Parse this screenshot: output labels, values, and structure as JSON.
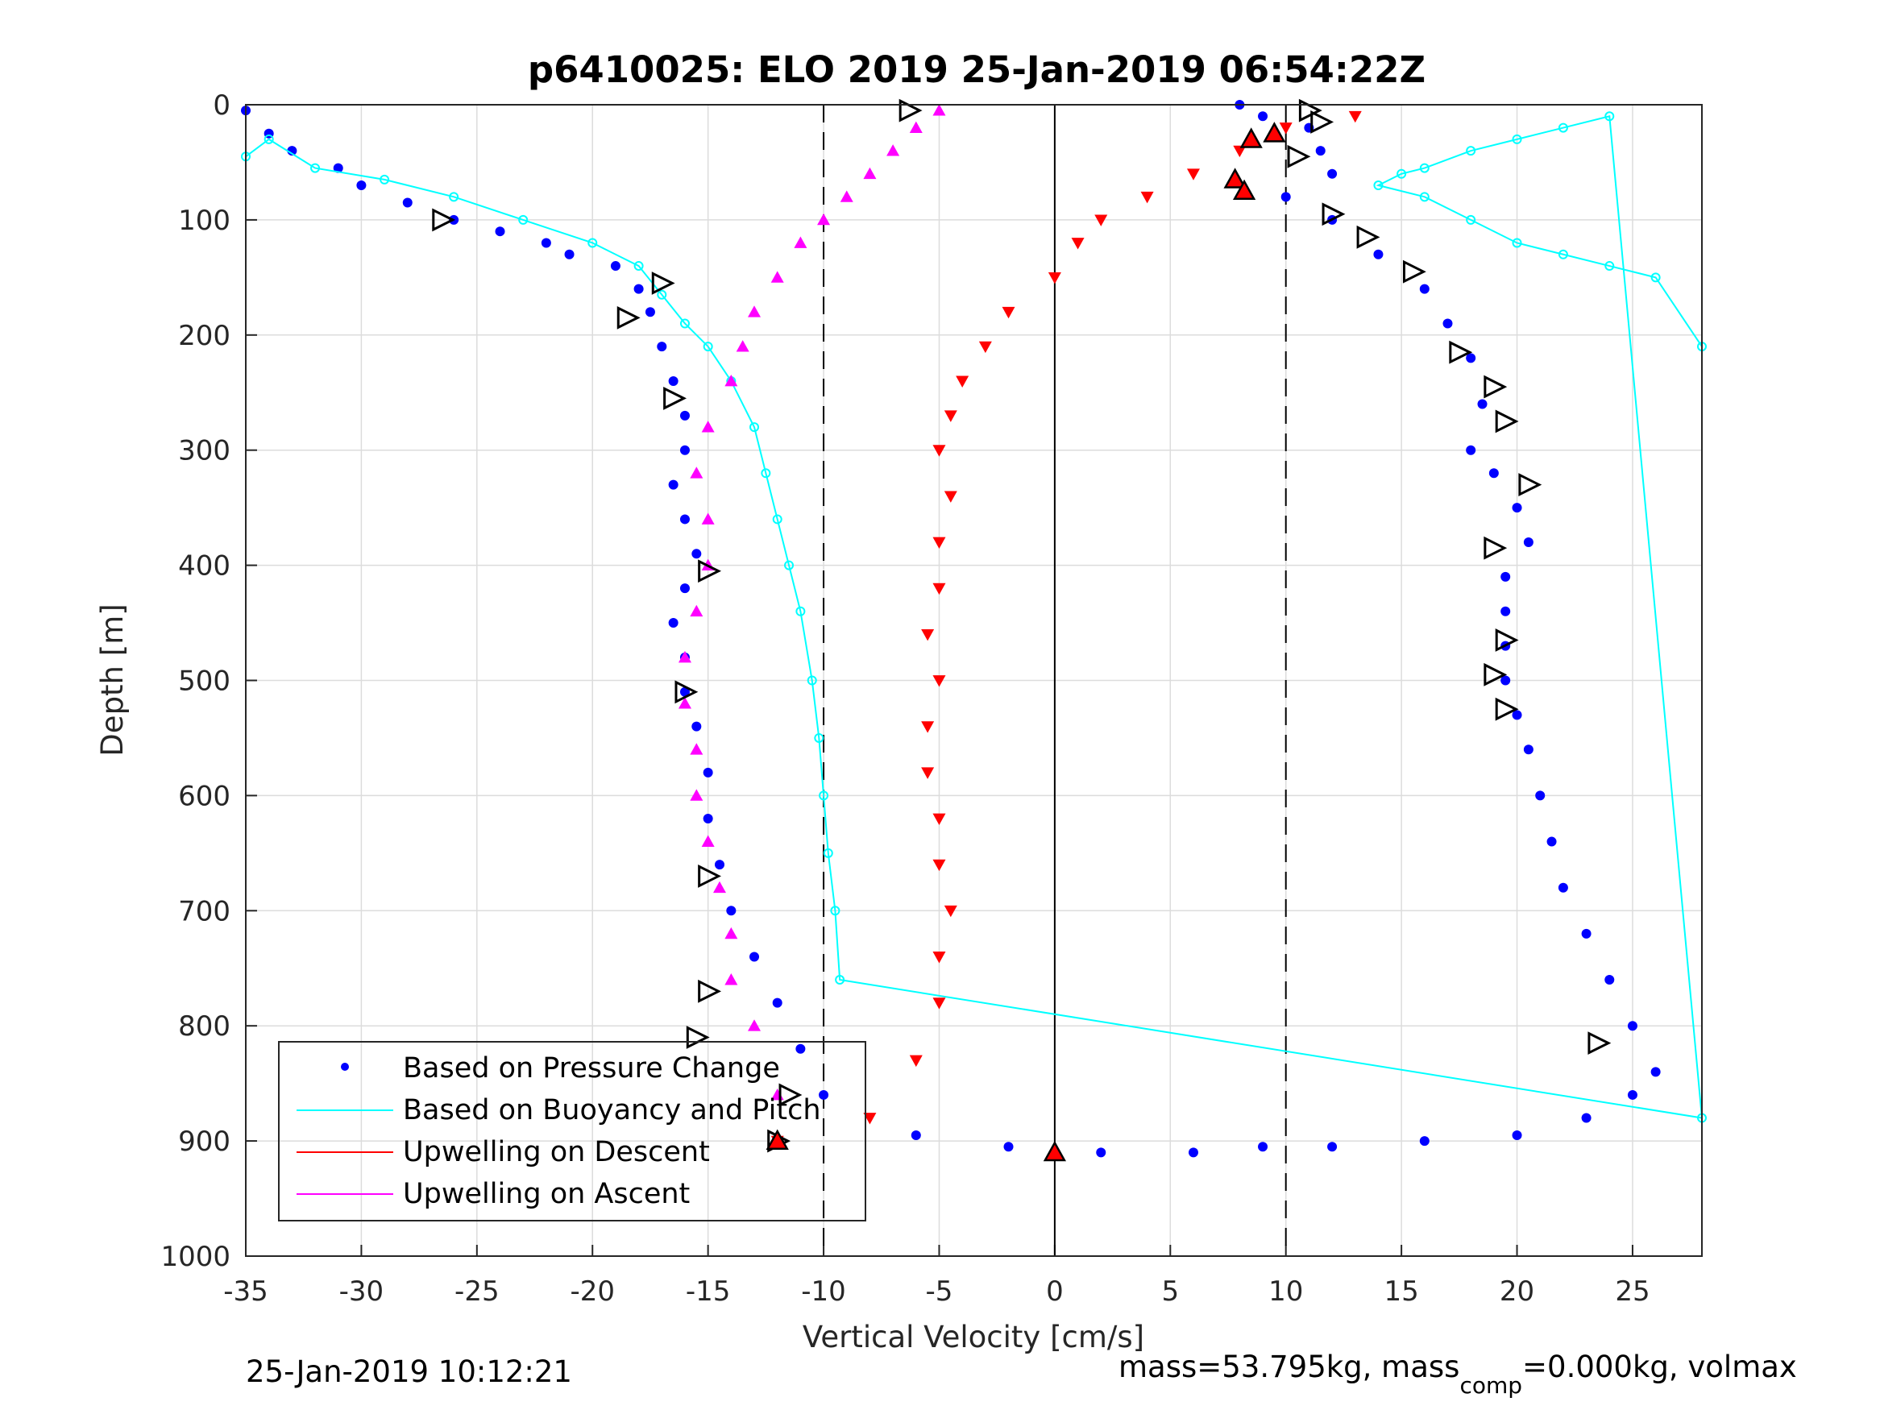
{
  "chart_data": {
    "type": "scatter",
    "title": "p6410025: ELO 2019 25-Jan-2019 06:54:22Z",
    "xlabel": "Vertical Velocity [cm/s]",
    "ylabel": "Depth [m]",
    "xlim": [
      -35,
      28
    ],
    "ylim": [
      0,
      1000
    ],
    "y_reversed": true,
    "grid": true,
    "xticks": [
      -35,
      -30,
      -25,
      -20,
      -15,
      -10,
      -5,
      0,
      5,
      10,
      15,
      20,
      25
    ],
    "yticks": [
      0,
      100,
      200,
      300,
      400,
      500,
      600,
      700,
      800,
      900,
      1000
    ],
    "legend_position": "bottom-left",
    "reference_lines": [
      {
        "x": -10,
        "style": "dashed"
      },
      {
        "x": 0,
        "style": "solid"
      },
      {
        "x": 10,
        "style": "dashed"
      }
    ],
    "series": [
      {
        "name": "Based on Pressure Change",
        "color": "#0000ff",
        "marker": "dot",
        "x": [
          -35,
          -34,
          -33,
          -31,
          -30,
          -28,
          -26,
          -24,
          -22,
          -21,
          -19,
          -18,
          -17.5,
          -17,
          -16.5,
          -16,
          -16,
          -16.5,
          -16,
          -15.5,
          -16,
          -16.5,
          -16,
          -16,
          -15.5,
          -15,
          -15,
          -14.5,
          -14,
          -13,
          -12,
          -11,
          -10,
          -6,
          -2,
          2,
          6,
          9,
          8,
          9,
          11,
          11.5,
          12,
          10,
          12,
          14,
          16,
          17,
          18,
          18.5,
          18,
          19,
          20,
          20.5,
          19.5,
          19.5,
          19.5,
          19.5,
          20,
          20.5,
          21,
          21.5,
          22,
          23,
          24,
          25,
          26,
          25,
          23,
          20,
          16,
          12
        ],
        "y": [
          5,
          25,
          40,
          55,
          70,
          85,
          100,
          110,
          120,
          130,
          140,
          160,
          180,
          210,
          240,
          270,
          300,
          330,
          360,
          390,
          420,
          450,
          480,
          510,
          540,
          580,
          620,
          660,
          700,
          740,
          780,
          820,
          860,
          895,
          905,
          910,
          910,
          905,
          0,
          10,
          20,
          40,
          60,
          80,
          100,
          130,
          160,
          190,
          220,
          260,
          300,
          320,
          350,
          380,
          410,
          440,
          470,
          500,
          530,
          560,
          600,
          640,
          680,
          720,
          760,
          800,
          840,
          860,
          880,
          895,
          900,
          905
        ]
      },
      {
        "name": "Based on Buoyancy and Pitch",
        "color": "#00ffff",
        "marker": "circle-line",
        "x": [
          -35,
          -34,
          -32,
          -29,
          -26,
          -23,
          -20,
          -18,
          -17,
          -16,
          -15,
          -14,
          -13,
          -12.5,
          -12,
          -11.5,
          -11,
          -10.5,
          -10.2,
          -10,
          -9.8,
          -9.5,
          -9.3,
          28,
          24,
          22,
          20,
          18,
          16,
          15,
          14,
          16,
          18,
          20,
          22,
          24,
          26,
          28
        ],
        "y": [
          45,
          30,
          55,
          65,
          80,
          100,
          120,
          140,
          165,
          190,
          210,
          240,
          280,
          320,
          360,
          400,
          440,
          500,
          550,
          600,
          650,
          700,
          760,
          880,
          10,
          20,
          30,
          40,
          55,
          60,
          70,
          80,
          100,
          120,
          130,
          140,
          150,
          210
        ]
      },
      {
        "name": "Upwelling on Descent",
        "color": "#ff0000",
        "marker": "triangle-down",
        "x": [
          13,
          10,
          8,
          6,
          4,
          2,
          1,
          0,
          -2,
          -3,
          -4,
          -4.5,
          -5,
          -4.5,
          -5,
          -5,
          -5.5,
          -5,
          -5.5,
          -5.5,
          -5,
          -5,
          -4.5,
          -5,
          -5,
          -6,
          -8,
          -12
        ],
        "y": [
          10,
          20,
          40,
          60,
          80,
          100,
          120,
          150,
          180,
          210,
          240,
          270,
          300,
          340,
          380,
          420,
          460,
          500,
          540,
          580,
          620,
          660,
          700,
          740,
          780,
          830,
          880,
          900
        ]
      },
      {
        "name": "Upwelling on Ascent",
        "color": "#ff00ff",
        "marker": "triangle-up",
        "x": [
          -5,
          -6,
          -7,
          -8,
          -9,
          -10,
          -11,
          -12,
          -13,
          -13.5,
          -14,
          -15,
          -15.5,
          -15,
          -15,
          -15.5,
          -16,
          -16,
          -15.5,
          -15.5,
          -15,
          -14.5,
          -14,
          -14,
          -13,
          -12
        ],
        "y": [
          5,
          20,
          40,
          60,
          80,
          100,
          120,
          150,
          180,
          210,
          240,
          280,
          320,
          360,
          400,
          440,
          480,
          520,
          560,
          600,
          640,
          680,
          720,
          760,
          800,
          860
        ]
      }
    ],
    "markers_hollow_triangles": {
      "color": "#000000",
      "x": [
        -6.3,
        -26.5,
        -17,
        -18.5,
        -16.5,
        -15,
        -16,
        -15,
        -15,
        -15.5,
        11,
        11.5,
        10.5,
        12,
        13.5,
        15.5,
        17.5,
        19,
        19.5,
        20.5,
        19,
        19.5,
        19,
        19.5,
        23.5,
        -11.5,
        -12
      ],
      "y": [
        5,
        100,
        155,
        185,
        255,
        405,
        510,
        670,
        770,
        810,
        5,
        15,
        45,
        95,
        115,
        145,
        215,
        245,
        275,
        330,
        385,
        465,
        495,
        525,
        815,
        860,
        900
      ]
    },
    "markers_red_triangles": {
      "color": "#ff0000",
      "x": [
        8.5,
        9.5,
        7.8,
        8.2,
        -12,
        0
      ],
      "y": [
        30,
        25,
        65,
        75,
        900,
        910
      ]
    }
  },
  "footer": {
    "timestamp": "25-Jan-2019 10:12:21",
    "mass_text": "mass=53.795kg, mass",
    "mass_sub": "comp",
    "mass_rest": "=0.000kg, volmax"
  }
}
